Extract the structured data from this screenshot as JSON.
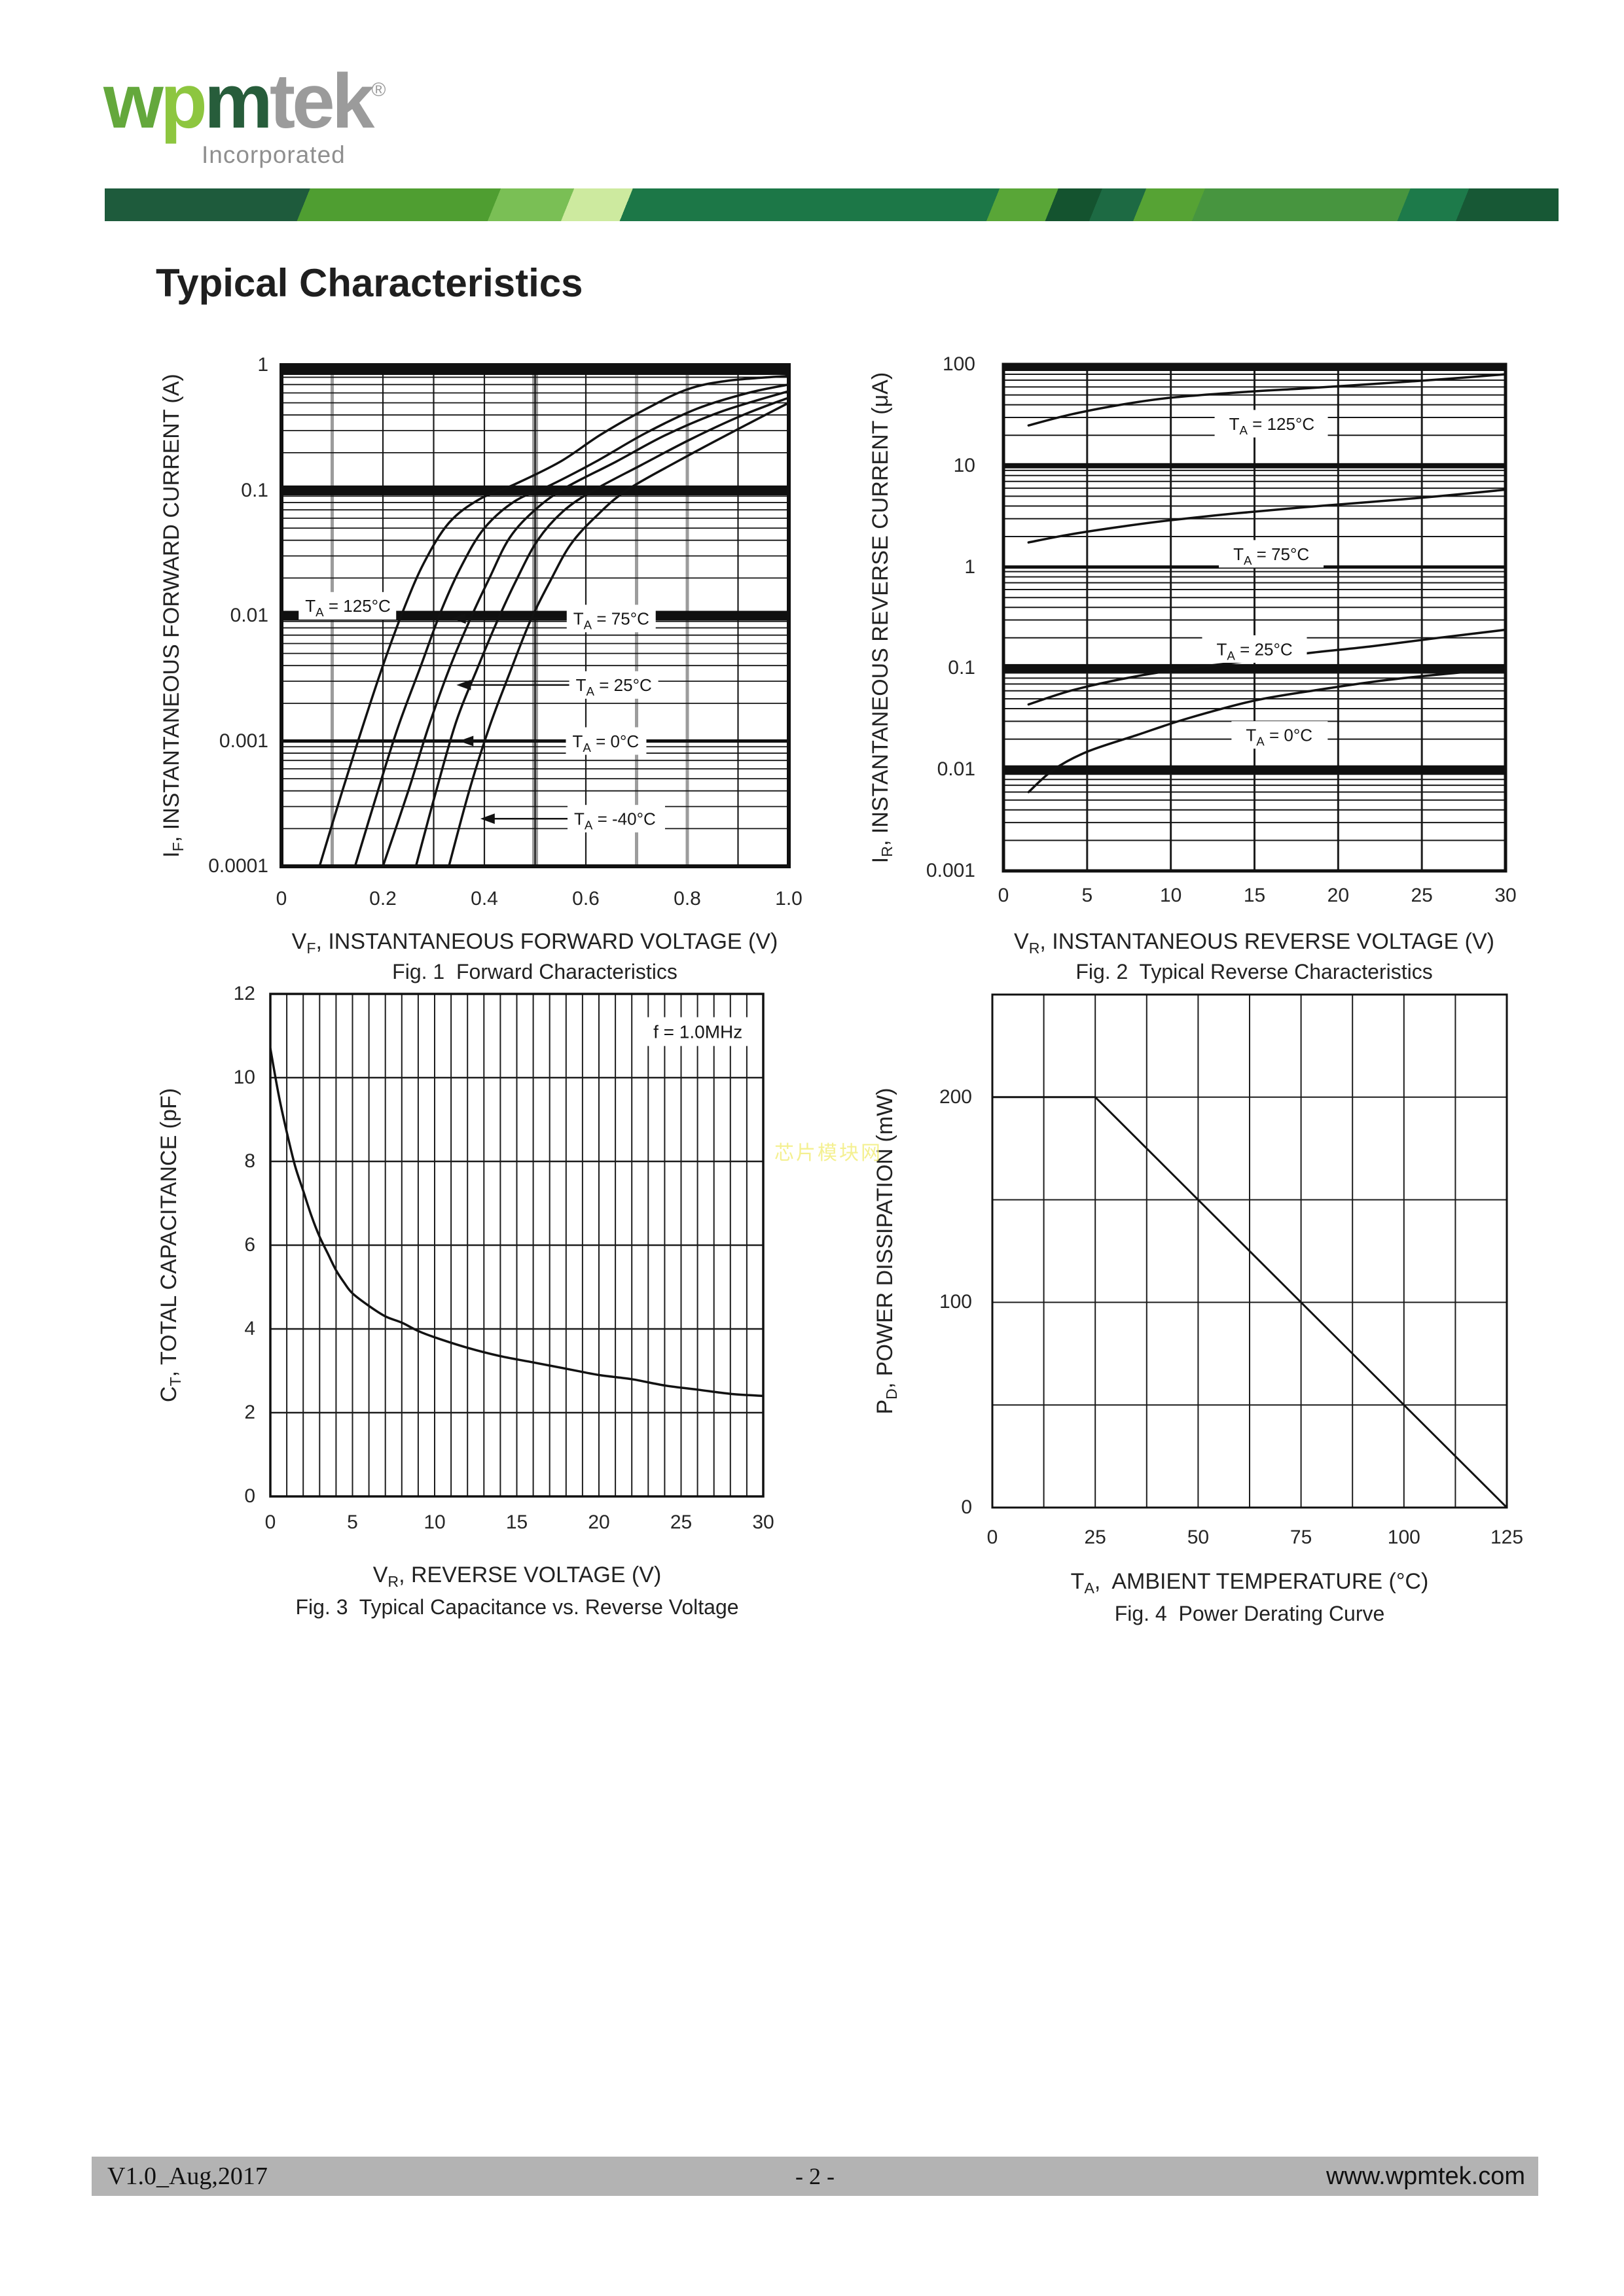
{
  "header": {
    "logo": {
      "part_w": "w",
      "part_p": "p",
      "part_m": "m",
      "part_tek": "tek",
      "registered": "®",
      "subtitle": "Incorporated",
      "colors": {
        "w": "#64a83c",
        "p": "#8dc63f",
        "m": "#275d3b",
        "tek": "#9b9b9b",
        "subtitle": "#8f8f8f"
      }
    },
    "banner": {
      "stops": [
        {
          "color": "#1e5b3c",
          "to": 14
        },
        {
          "color": "#4f9e31",
          "to": 27
        },
        {
          "color": "#7abf55",
          "to": 32
        },
        {
          "color": "#cdea9f",
          "to": 36
        },
        {
          "color": "#1c7747",
          "to": 61
        },
        {
          "color": "#59a637",
          "to": 65
        },
        {
          "color": "#14532f",
          "to": 68
        },
        {
          "color": "#1d6a43",
          "to": 71
        },
        {
          "color": "#56a334",
          "to": 75
        },
        {
          "color": "#47953f",
          "to": 89
        },
        {
          "color": "#1d7a4a",
          "to": 93
        },
        {
          "color": "#175835",
          "to": 100
        }
      ]
    }
  },
  "title": "Typical Characteristics",
  "watermark": {
    "text": "芯片模块网",
    "color": "#f3ee7e"
  },
  "footer": {
    "left": "V1.0_Aug,2017",
    "center": "- 2 -",
    "right": "www.wpmtek.com",
    "bg": "#b3b3b3"
  },
  "chart_data": [
    {
      "id": "fig1",
      "type": "line",
      "title": "Fig. 1  Forward Characteristics",
      "xlabel": {
        "pre": "V",
        "sub": "F",
        "post": ", INSTANTANEOUS FORWARD VOLTAGE (V)"
      },
      "ylabel": {
        "pre": "I",
        "sub": "F",
        "post": ", INSTANTANEOUS FORWARD CURRENT (A)"
      },
      "xscale": "linear",
      "yscale": "log",
      "xlim": [
        0,
        1.0
      ],
      "ylim": [
        0.0001,
        1
      ],
      "x_grid_step": 0.1,
      "x_ticks": [
        [
          "0",
          0
        ],
        [
          "0.2",
          0.2
        ],
        [
          "0.4",
          0.4
        ],
        [
          "0.6",
          0.6
        ],
        [
          "0.8",
          0.8
        ],
        [
          "1.0",
          1.0
        ]
      ],
      "y_ticks": [
        [
          "1",
          1
        ],
        [
          "0.1",
          0.1
        ],
        [
          "0.01",
          0.01
        ],
        [
          "0.001",
          0.001
        ],
        [
          "0.0001",
          0.0001
        ]
      ],
      "series": [
        {
          "name": "TA = 125°C",
          "points": [
            [
              0.075,
              0.0001
            ],
            [
              0.12,
              0.0004
            ],
            [
              0.16,
              0.0013
            ],
            [
              0.2,
              0.004
            ],
            [
              0.24,
              0.011
            ],
            [
              0.28,
              0.026
            ],
            [
              0.33,
              0.055
            ],
            [
              0.39,
              0.085
            ],
            [
              0.46,
              0.112
            ],
            [
              0.55,
              0.17
            ],
            [
              0.63,
              0.28
            ],
            [
              0.72,
              0.45
            ],
            [
              0.8,
              0.64
            ],
            [
              0.88,
              0.75
            ],
            [
              1.0,
              0.82
            ]
          ]
        },
        {
          "name": "TA = 75°C",
          "points": [
            [
              0.145,
              0.0001
            ],
            [
              0.19,
              0.0004
            ],
            [
              0.23,
              0.0013
            ],
            [
              0.275,
              0.004
            ],
            [
              0.315,
              0.011
            ],
            [
              0.355,
              0.025
            ],
            [
              0.4,
              0.05
            ],
            [
              0.46,
              0.082
            ],
            [
              0.53,
              0.11
            ],
            [
              0.62,
              0.17
            ],
            [
              0.72,
              0.29
            ],
            [
              0.82,
              0.45
            ],
            [
              0.92,
              0.6
            ],
            [
              1.0,
              0.7
            ]
          ]
        },
        {
          "name": "TA = 25°C",
          "points": [
            [
              0.2,
              0.0001
            ],
            [
              0.25,
              0.0004
            ],
            [
              0.29,
              0.0013
            ],
            [
              0.33,
              0.0037
            ],
            [
              0.37,
              0.009
            ],
            [
              0.41,
              0.02
            ],
            [
              0.45,
              0.042
            ],
            [
              0.5,
              0.07
            ],
            [
              0.56,
              0.105
            ],
            [
              0.66,
              0.17
            ],
            [
              0.76,
              0.28
            ],
            [
              0.87,
              0.43
            ],
            [
              1.0,
              0.62
            ]
          ]
        },
        {
          "name": "TA = 0°C",
          "points": [
            [
              0.265,
              0.0001
            ],
            [
              0.305,
              0.0004
            ],
            [
              0.345,
              0.00145
            ],
            [
              0.385,
              0.0037
            ],
            [
              0.425,
              0.009
            ],
            [
              0.465,
              0.02
            ],
            [
              0.505,
              0.04
            ],
            [
              0.555,
              0.068
            ],
            [
              0.615,
              0.1
            ],
            [
              0.71,
              0.16
            ],
            [
              0.81,
              0.26
            ],
            [
              0.91,
              0.4
            ],
            [
              1.0,
              0.55
            ]
          ]
        },
        {
          "name": "TA = -40°C",
          "points": [
            [
              0.33,
              0.0001
            ],
            [
              0.37,
              0.0004
            ],
            [
              0.41,
              0.0013
            ],
            [
              0.45,
              0.0035
            ],
            [
              0.49,
              0.009
            ],
            [
              0.53,
              0.019
            ],
            [
              0.57,
              0.037
            ],
            [
              0.62,
              0.062
            ],
            [
              0.68,
              0.1
            ],
            [
              0.78,
              0.17
            ],
            [
              0.88,
              0.28
            ],
            [
              1.0,
              0.5
            ]
          ]
        }
      ],
      "annotations": [
        {
          "pre": "T",
          "sub": "A",
          "post": " = 125°C",
          "at": [
            0.13,
            0.012
          ]
        },
        {
          "pre": "T",
          "sub": "A",
          "post": " = 75°C",
          "at": [
            0.65,
            0.0095
          ],
          "tip": [
            0.335,
            0.0095
          ]
        },
        {
          "pre": "T",
          "sub": "A",
          "post": " = 25°C",
          "at": [
            0.655,
            0.0028
          ],
          "tip": [
            0.345,
            0.0028
          ]
        },
        {
          "pre": "T",
          "sub": "A",
          "post": " = 0°C",
          "at": [
            0.64,
            0.001
          ],
          "tip": [
            0.35,
            0.001
          ]
        },
        {
          "pre": "T",
          "sub": "A",
          "post": " = -40°C",
          "at": [
            0.66,
            0.00024
          ],
          "tip": [
            0.392,
            0.00024
          ]
        }
      ]
    },
    {
      "id": "fig2",
      "type": "line",
      "title": "Fig. 2  Typical Reverse Characteristics",
      "xlabel": {
        "pre": "V",
        "sub": "R",
        "post": ", INSTANTANEOUS REVERSE VOLTAGE (V)"
      },
      "ylabel": {
        "pre": "I",
        "sub": "R",
        "post": ", INSTANTANEOUS REVERSE CURRENT (μA)"
      },
      "xscale": "linear",
      "yscale": "log",
      "xlim": [
        0,
        30
      ],
      "ylim": [
        0.001,
        100
      ],
      "x_grid_step": 5,
      "x_ticks": [
        [
          "0",
          0
        ],
        [
          "5",
          5
        ],
        [
          "10",
          10
        ],
        [
          "15",
          15
        ],
        [
          "20",
          20
        ],
        [
          "25",
          25
        ],
        [
          "30",
          30
        ]
      ],
      "y_ticks": [
        [
          "100",
          100
        ],
        [
          "10",
          10
        ],
        [
          "1",
          1
        ],
        [
          "0.1",
          0.1
        ],
        [
          "0.01",
          0.01
        ],
        [
          "0.001",
          0.001
        ]
      ],
      "series": [
        {
          "name": "TA = 125°C",
          "points": [
            [
              1.5,
              25
            ],
            [
              4,
              32
            ],
            [
              7,
              40
            ],
            [
              10,
              47
            ],
            [
              14,
              53
            ],
            [
              18,
              58
            ],
            [
              22,
              64
            ],
            [
              26,
              71
            ],
            [
              30,
              80
            ]
          ]
        },
        {
          "name": "TA = 75°C",
          "points": [
            [
              1.5,
              1.75
            ],
            [
              4,
              2.1
            ],
            [
              7,
              2.5
            ],
            [
              10,
              2.9
            ],
            [
              14,
              3.4
            ],
            [
              18,
              3.9
            ],
            [
              22,
              4.4
            ],
            [
              26,
              5
            ],
            [
              30,
              5.8
            ]
          ]
        },
        {
          "name": "TA = 25°C",
          "points": [
            [
              1.5,
              0.044
            ],
            [
              4,
              0.06
            ],
            [
              7,
              0.078
            ],
            [
              10,
              0.095
            ],
            [
              14,
              0.115
            ],
            [
              18,
              0.14
            ],
            [
              22,
              0.165
            ],
            [
              26,
              0.2
            ],
            [
              30,
              0.24
            ]
          ]
        },
        {
          "name": "TA = 0°C",
          "points": [
            [
              1.5,
              0.006
            ],
            [
              3,
              0.01
            ],
            [
              5,
              0.015
            ],
            [
              8,
              0.022
            ],
            [
              11,
              0.032
            ],
            [
              15,
              0.048
            ],
            [
              19,
              0.062
            ],
            [
              23,
              0.077
            ],
            [
              27,
              0.09
            ],
            [
              30,
              0.1
            ]
          ]
        }
      ],
      "annotations": [
        {
          "pre": "T",
          "sub": "A",
          "post": " = 125°C",
          "at": [
            16,
            26
          ]
        },
        {
          "pre": "T",
          "sub": "A",
          "post": " = 75°C",
          "at": [
            16,
            1.35
          ]
        },
        {
          "pre": "T",
          "sub": "A",
          "post": " = 25°C",
          "at": [
            15,
            0.155
          ]
        },
        {
          "pre": "T",
          "sub": "A",
          "post": " = 0°C",
          "at": [
            16.5,
            0.022
          ]
        }
      ]
    },
    {
      "id": "fig3",
      "type": "line",
      "title": "Fig. 3  Typical Capacitance vs. Reverse Voltage",
      "xlabel": {
        "pre": "V",
        "sub": "R",
        "post": ", REVERSE VOLTAGE (V)"
      },
      "ylabel": {
        "pre": "C",
        "sub": "T",
        "post": ", TOTAL CAPACITANCE (pF)"
      },
      "xscale": "linear",
      "yscale": "linear",
      "xlim": [
        0,
        30
      ],
      "ylim": [
        0,
        12
      ],
      "x_grid_step": 1,
      "y_grid_step": 2,
      "x_ticks": [
        [
          "0",
          0
        ],
        [
          "5",
          5
        ],
        [
          "10",
          10
        ],
        [
          "15",
          15
        ],
        [
          "20",
          20
        ],
        [
          "25",
          25
        ],
        [
          "30",
          30
        ]
      ],
      "y_ticks": [
        [
          "0",
          0
        ],
        [
          "2",
          2
        ],
        [
          "4",
          4
        ],
        [
          "6",
          6
        ],
        [
          "8",
          8
        ],
        [
          "10",
          10
        ],
        [
          "12",
          12
        ]
      ],
      "series": [
        {
          "name": "CT",
          "points": [
            [
              0,
              10.7
            ],
            [
              0.5,
              9.6
            ],
            [
              1,
              8.7
            ],
            [
              1.5,
              7.9
            ],
            [
              2,
              7.3
            ],
            [
              2.5,
              6.7
            ],
            [
              3,
              6.2
            ],
            [
              3.5,
              5.8
            ],
            [
              4,
              5.4
            ],
            [
              4.5,
              5.1
            ],
            [
              5,
              4.85
            ],
            [
              6,
              4.55
            ],
            [
              7,
              4.3
            ],
            [
              8,
              4.15
            ],
            [
              9,
              3.95
            ],
            [
              10,
              3.8
            ],
            [
              12,
              3.55
            ],
            [
              14,
              3.35
            ],
            [
              16,
              3.2
            ],
            [
              18,
              3.05
            ],
            [
              20,
              2.9
            ],
            [
              22,
              2.8
            ],
            [
              24,
              2.65
            ],
            [
              26,
              2.55
            ],
            [
              28,
              2.45
            ],
            [
              30,
              2.4
            ]
          ]
        }
      ],
      "annotations": [
        {
          "text": "f = 1.0MHz",
          "at": [
            26.1,
            11.1
          ]
        }
      ]
    },
    {
      "id": "fig4",
      "type": "line",
      "title": "Fig. 4  Power Derating Curve",
      "xlabel": {
        "pre": "T",
        "sub": "A",
        "post": ",  AMBIENT TEMPERATURE (°C)"
      },
      "ylabel": {
        "pre": "P",
        "sub": "D",
        "post": ", POWER DISSIPATION (mW)"
      },
      "xscale": "linear",
      "yscale": "linear",
      "xlim": [
        0,
        125
      ],
      "ylim": [
        0,
        250
      ],
      "x_grid_step": 12.5,
      "y_grid_step": 50,
      "smooth": false,
      "x_ticks": [
        [
          "0",
          0
        ],
        [
          "25",
          25
        ],
        [
          "50",
          50
        ],
        [
          "75",
          75
        ],
        [
          "100",
          100
        ],
        [
          "125",
          125
        ]
      ],
      "y_ticks": [
        [
          "0",
          0
        ],
        [
          "100",
          100
        ],
        [
          "200",
          200
        ]
      ],
      "series": [
        {
          "name": "PD",
          "points": [
            [
              0,
              200
            ],
            [
              25,
              200
            ],
            [
              125,
              0
            ]
          ]
        }
      ],
      "annotations": []
    }
  ]
}
